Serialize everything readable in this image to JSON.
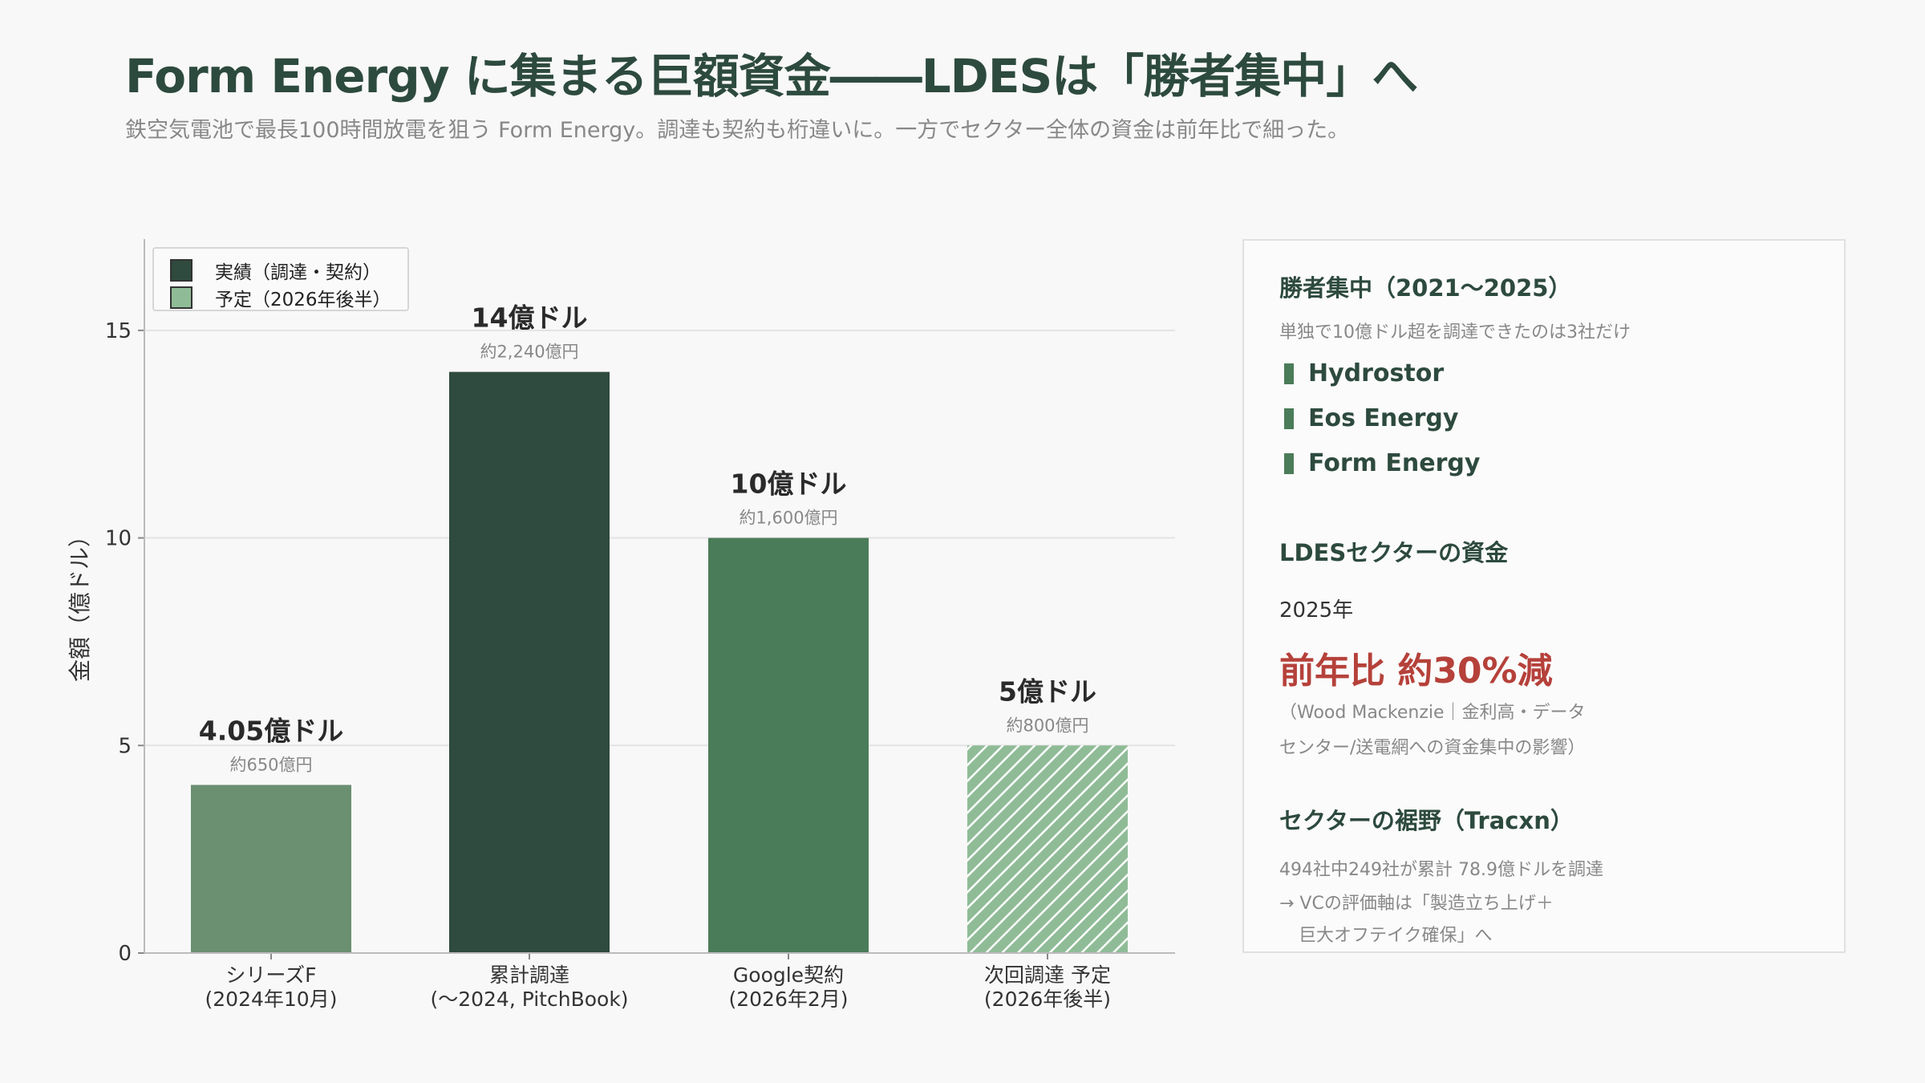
{
  "header": {
    "title": "Form Energy に集まる巨額資金――LDESは「勝者集中」へ",
    "subtitle": "鉄空気電池で最長100時間放電を狙う Form Energy。調達も契約も桁違いに。一方でセクター全体の資金は前年比で細った。"
  },
  "chart_data": {
    "type": "bar",
    "categories": [
      "シリーズF\n(2024年10月)",
      "累計調達\n(〜2024, PitchBook)",
      "Google契約\n(2026年2月)",
      "次回調達 予定\n(2026年後半)"
    ],
    "values": [
      4.05,
      14,
      10,
      5
    ],
    "value_labels": [
      "4.05億ドル",
      "14億ドル",
      "10億ドル",
      "5億ドル"
    ],
    "yen_labels": [
      "約650億円",
      "約2,240億円",
      "約1,600億円",
      "約800億円"
    ],
    "bar_colors": [
      "#6b8f71",
      "#2f4a3e",
      "#4a7c59",
      "#8fbc97"
    ],
    "bar_hatched": [
      false,
      false,
      false,
      true
    ],
    "ylabel": "金額（億ドル）",
    "ylim": [
      0,
      17.2
    ],
    "yticks": [
      0,
      5,
      10,
      15
    ],
    "grid": true,
    "legend": {
      "position": "top-left",
      "entries": [
        {
          "label": "実績（調達・契約）",
          "color": "#2f4a3e",
          "hatched": false
        },
        {
          "label": "予定（2026年後半）",
          "color": "#8fbc97",
          "hatched": false
        }
      ]
    }
  },
  "panel": {
    "section1_title": "勝者集中（2021〜2025）",
    "section1_note": "単独で10億ドル超を調達できたのは3社だけ",
    "companies": [
      "Hydrostor",
      "Eos Energy",
      "Form Energy"
    ],
    "section2_title": "LDESセクターの資金",
    "year": "2025年",
    "big_stat": "前年比 約30%減",
    "source_line1": "（Wood Mackenzie｜金利高・データ",
    "source_line2": "センター/送電網への資金集中の影響）",
    "section3_title": "セクターの裾野（Tracxn）",
    "stat_line": "494社中249社が累計 78.9億ドルを調達",
    "arrow_line1": "→ VCの評価軸は「製造立ち上げ＋",
    "arrow_line2": "巨大オフテイク確保」へ"
  },
  "colors": {
    "title": "#2d4a3e",
    "accent_red": "#b5413a",
    "marker": "#4a7c59"
  }
}
